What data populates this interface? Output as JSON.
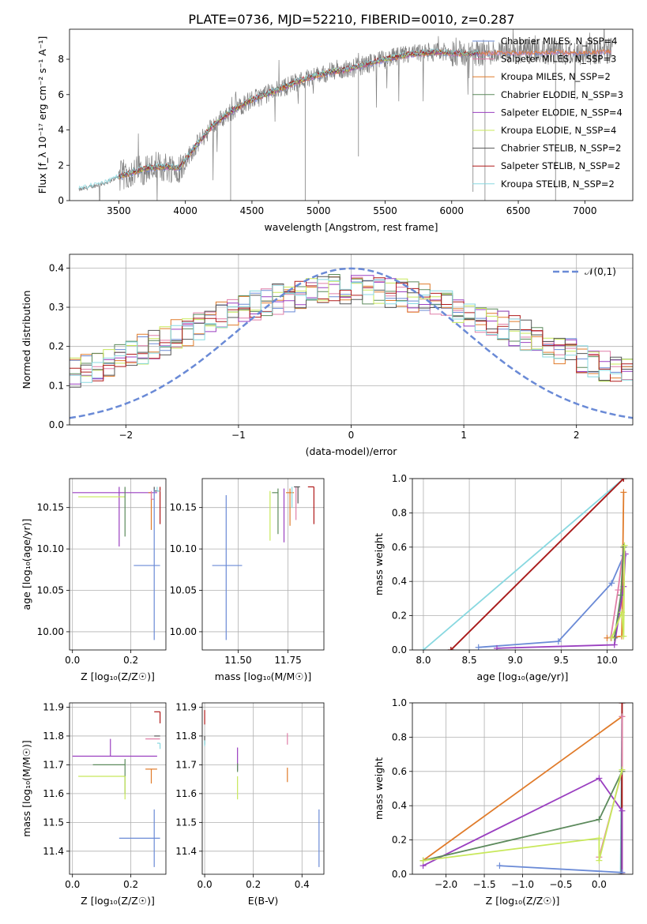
{
  "figure": {
    "title": "PLATE=0736, MJD=52210, FIBERID=0010, z=0.287"
  },
  "chart_data": [
    {
      "id": "spectrum",
      "type": "line",
      "xlabel": "wavelength [Angstrom, rest frame]",
      "ylabel": "Flux [f_λ 10⁻¹⁷ erg cm⁻² s⁻¹ A⁻¹]",
      "xlim": [
        3130,
        7360
      ],
      "ylim": [
        0,
        9.7
      ],
      "xticks": [
        3500,
        4000,
        4500,
        5000,
        5500,
        6000,
        6500,
        7000
      ],
      "yticks": [
        0,
        2,
        4,
        6,
        8
      ],
      "grid": false,
      "legend_position": "top-right",
      "series": [
        {
          "name": "Chabrier MILES, N_SSP=4",
          "color": "#6a8ad6"
        },
        {
          "name": "Salpeter MILES, N_SSP=3",
          "color": "#e07fa8"
        },
        {
          "name": "Kroupa MILES, N_SSP=2",
          "color": "#e07b2a"
        },
        {
          "name": "Chabrier ELODIE, N_SSP=3",
          "color": "#5c8a5c"
        },
        {
          "name": "Salpeter ELODIE, N_SSP=4",
          "color": "#9a3fc0"
        },
        {
          "name": "Kroupa ELODIE, N_SSP=4",
          "color": "#c8e85a"
        },
        {
          "name": "Chabrier STELIB, N_SSP=2",
          "color": "#555555"
        },
        {
          "name": "Salpeter STELIB, N_SSP=2",
          "color": "#b01a1a"
        },
        {
          "name": "Kroupa STELIB, N_SSP=2",
          "color": "#88d8e0"
        }
      ],
      "data_color": "#808080",
      "continuum": {
        "x": [
          3200,
          3300,
          3400,
          3500,
          3600,
          3700,
          3800,
          3900,
          3960,
          4000,
          4100,
          4200,
          4300,
          4400,
          4500,
          4600,
          4700,
          4800,
          4900,
          5000,
          5100,
          5200,
          5300,
          5400,
          5500,
          5600,
          5700,
          5800,
          5900,
          6000,
          6100,
          6200,
          6300,
          6400,
          6500,
          6600,
          6700,
          6800,
          6900,
          7000,
          7100,
          7200
        ],
        "y": [
          0.6,
          0.8,
          1.0,
          1.35,
          1.6,
          1.8,
          1.9,
          1.9,
          1.85,
          2.3,
          3.3,
          4.2,
          4.8,
          5.3,
          5.7,
          6.0,
          6.3,
          6.6,
          6.9,
          7.1,
          7.3,
          7.4,
          7.6,
          7.8,
          8.0,
          8.15,
          8.3,
          8.35,
          8.4,
          8.35,
          8.3,
          8.35,
          8.4,
          8.4,
          8.4,
          8.4,
          8.4,
          8.45,
          8.4,
          8.4,
          8.45,
          8.5
        ]
      }
    },
    {
      "id": "residuals",
      "type": "line",
      "xlabel": "(data-model)/error",
      "ylabel": "Normed distribution",
      "xlim": [
        -2.5,
        2.5
      ],
      "ylim": [
        0,
        0.435
      ],
      "xticks": [
        -2,
        -1,
        0,
        1,
        2
      ],
      "yticks": [
        0.0,
        0.1,
        0.2,
        0.3,
        0.4
      ],
      "grid": true,
      "legend_position": "top-right",
      "legend_label": "𝒩(0,1)",
      "normal_color": "#6a8ad6",
      "bin_width": 0.1
    },
    {
      "id": "age-vs-Z",
      "type": "scatter",
      "xlabel": "Z [log₁₀(Z/Z☉)]",
      "ylabel": "age  [log₁₀(age/yr)]",
      "xlim": [
        -0.01,
        0.32
      ],
      "ylim": [
        9.978,
        10.185
      ],
      "xticks": [
        0.0,
        0.2
      ],
      "yticks": [
        10.0,
        10.05,
        10.1,
        10.15
      ],
      "grid": true,
      "points": [
        {
          "x": 0.28,
          "xerr": [
            0.0,
            0.02
          ],
          "y": 10.17,
          "yerr": [
            0.0,
            0.005
          ],
          "color": "#555555"
        },
        {
          "x": 0.3,
          "xerr": [
            0.0,
            0.0
          ],
          "y": 10.155,
          "yerr": [
            0.025,
            0.02
          ],
          "color": "#b01a1a"
        },
        {
          "x": 0.29,
          "xerr": [
            0.0,
            0.01
          ],
          "y": 10.17,
          "yerr": [
            0.0,
            0.005
          ],
          "color": "#88d8e0"
        },
        {
          "x": 0.16,
          "xerr": [
            0.16,
            0.13
          ],
          "y": 10.168,
          "yerr": [
            0.065,
            0.007
          ],
          "color": "#9a3fc0"
        },
        {
          "x": 0.27,
          "xerr": [
            0.01,
            0.0
          ],
          "y": 10.168,
          "yerr": [
            0.045,
            0.0
          ],
          "color": "#e07b2a"
        },
        {
          "x": 0.27,
          "xerr": [
            0.0,
            0.01
          ],
          "y": 10.16,
          "yerr": [
            0.0,
            0.01
          ],
          "color": "#e07fa8"
        },
        {
          "x": 0.18,
          "xerr": [
            0.16,
            0.0
          ],
          "y": 10.163,
          "yerr": [
            0.0,
            0.0
          ],
          "color": "#c8e85a"
        },
        {
          "x": 0.18,
          "xerr": [
            0.0,
            0.0
          ],
          "y": 10.16,
          "yerr": [
            0.045,
            0.015
          ],
          "color": "#5c8a5c"
        },
        {
          "x": 0.28,
          "xerr": [
            0.07,
            0.02
          ],
          "y": 10.08,
          "yerr": [
            0.09,
            0.092
          ],
          "color": "#6a8ad6"
        }
      ]
    },
    {
      "id": "age-vs-mass",
      "type": "scatter",
      "xlabel": "mass [log₁₀(M/M☉)]",
      "ylabel": "",
      "xlim": [
        11.32,
        11.93
      ],
      "ylim": [
        9.978,
        10.185
      ],
      "xticks": [
        11.5,
        11.75
      ],
      "yticks": [
        10.0,
        10.05,
        10.1,
        10.15
      ],
      "grid": true,
      "points": [
        {
          "x": 11.44,
          "xerr": [
            0.07,
            0.08
          ],
          "y": 10.08,
          "yerr": [
            0.09,
            0.085
          ],
          "color": "#6a8ad6"
        },
        {
          "x": 11.66,
          "xerr": [
            0.0,
            0.0
          ],
          "y": 10.16,
          "yerr": [
            0.05,
            0.01
          ],
          "color": "#c8e85a"
        },
        {
          "x": 11.7,
          "xerr": [
            0.03,
            0.0
          ],
          "y": 10.168,
          "yerr": [
            0.05,
            0.005
          ],
          "color": "#5c8a5c"
        },
        {
          "x": 11.73,
          "xerr": [
            0.0,
            0.0
          ],
          "y": 10.168,
          "yerr": [
            0.06,
            0.005
          ],
          "color": "#9a3fc0"
        },
        {
          "x": 11.76,
          "xerr": [
            0.02,
            0.02
          ],
          "y": 10.168,
          "yerr": [
            0.04,
            0.005
          ],
          "color": "#e07b2a"
        },
        {
          "x": 11.79,
          "xerr": [
            0.0,
            0.0
          ],
          "y": 10.165,
          "yerr": [
            0.03,
            0.01
          ],
          "color": "#e07fa8"
        },
        {
          "x": 11.77,
          "xerr": [
            0.0,
            0.0
          ],
          "y": 10.17,
          "yerr": [
            0.02,
            0.005
          ],
          "color": "#88d8e0"
        },
        {
          "x": 11.8,
          "xerr": [
            0.02,
            0.01
          ],
          "y": 10.175,
          "yerr": [
            0.02,
            0.0
          ],
          "color": "#555555"
        },
        {
          "x": 11.88,
          "xerr": [
            0.03,
            0.0
          ],
          "y": 10.175,
          "yerr": [
            0.045,
            0.0
          ],
          "color": "#b01a1a"
        }
      ]
    },
    {
      "id": "mass-weight-vs-age",
      "type": "line",
      "xlabel": "age  [log₁₀(age/yr)]",
      "ylabel": "mass weight",
      "xlim": [
        7.88,
        10.28
      ],
      "ylim": [
        0,
        1.0
      ],
      "xticks": [
        8.0,
        8.5,
        9.0,
        9.5,
        10.0
      ],
      "yticks": [
        0.0,
        0.2,
        0.4,
        0.6,
        0.8,
        1.0
      ],
      "grid": true,
      "series": [
        {
          "color": "#88d8e0",
          "x": [
            8.0,
            10.18
          ],
          "y": [
            0.0,
            1.0
          ]
        },
        {
          "color": "#555555",
          "x": [
            8.3,
            10.18
          ],
          "y": [
            0.0,
            1.0
          ]
        },
        {
          "color": "#b01a1a",
          "x": [
            8.3,
            10.18
          ],
          "y": [
            0.0,
            1.0
          ]
        },
        {
          "color": "#e07b2a",
          "x": [
            10.0,
            10.16,
            10.18
          ],
          "y": [
            0.07,
            0.08,
            0.92
          ]
        },
        {
          "color": "#6a8ad6",
          "x": [
            8.6,
            9.47,
            10.05,
            10.18
          ],
          "y": [
            0.015,
            0.05,
            0.39,
            0.55
          ]
        },
        {
          "color": "#e07fa8",
          "x": [
            10.04,
            10.12,
            10.18
          ],
          "y": [
            0.07,
            0.35,
            0.6
          ]
        },
        {
          "color": "#9a3fc0",
          "x": [
            8.8,
            10.08,
            10.18,
            10.2
          ],
          "y": [
            0.01,
            0.03,
            0.37,
            0.56
          ]
        },
        {
          "color": "#5c8a5c",
          "x": [
            10.08,
            10.15,
            10.18
          ],
          "y": [
            0.07,
            0.32,
            0.6
          ]
        },
        {
          "color": "#c8e85a",
          "x": [
            10.05,
            10.16,
            10.18,
            10.19
          ],
          "y": [
            0.07,
            0.22,
            0.08,
            0.61
          ]
        }
      ]
    },
    {
      "id": "mass-vs-Z",
      "type": "scatter",
      "xlabel": "Z [log₁₀(Z/Z☉)]",
      "ylabel": "mass [log₁₀(M/M☉)]",
      "xlim": [
        -0.01,
        0.32
      ],
      "ylim": [
        11.32,
        11.915
      ],
      "xticks": [
        0.0,
        0.2
      ],
      "yticks": [
        11.4,
        11.5,
        11.6,
        11.7,
        11.8,
        11.9
      ],
      "grid": true,
      "points": [
        {
          "x": 0.3,
          "xerr": [
            0.02,
            0.0
          ],
          "y": 11.884,
          "yerr": [
            0.04,
            0.0
          ],
          "color": "#b01a1a"
        },
        {
          "x": 0.3,
          "xerr": [
            0.02,
            0.0
          ],
          "y": 11.8,
          "yerr": [
            0.0,
            0.0
          ],
          "color": "#555555"
        },
        {
          "x": 0.28,
          "xerr": [
            0.03,
            0.02
          ],
          "y": 11.79,
          "yerr": [
            0.0,
            0.0
          ],
          "color": "#e07fa8"
        },
        {
          "x": 0.3,
          "xerr": [
            0.01,
            0.0
          ],
          "y": 11.775,
          "yerr": [
            0.02,
            0.0
          ],
          "color": "#88d8e0"
        },
        {
          "x": 0.13,
          "xerr": [
            0.13,
            0.16
          ],
          "y": 11.73,
          "yerr": [
            0.0,
            0.06
          ],
          "color": "#9a3fc0"
        },
        {
          "x": 0.27,
          "xerr": [
            0.02,
            0.02
          ],
          "y": 11.685,
          "yerr": [
            0.05,
            0.0
          ],
          "color": "#e07b2a"
        },
        {
          "x": 0.18,
          "xerr": [
            0.11,
            0.0
          ],
          "y": 11.7,
          "yerr": [
            0.1,
            0.02
          ],
          "color": "#5c8a5c"
        },
        {
          "x": 0.18,
          "xerr": [
            0.16,
            0.0
          ],
          "y": 11.66,
          "yerr": [
            0.08,
            0.0
          ],
          "color": "#c8e85a"
        },
        {
          "x": 0.28,
          "xerr": [
            0.12,
            0.02
          ],
          "y": 11.445,
          "yerr": [
            0.1,
            0.1
          ],
          "color": "#6a8ad6"
        }
      ]
    },
    {
      "id": "mass-vs-ebv",
      "type": "scatter",
      "xlabel": "E(B-V)",
      "ylabel": "",
      "xlim": [
        -0.01,
        0.49
      ],
      "ylim": [
        11.32,
        11.915
      ],
      "xticks": [
        0.0,
        0.2,
        0.4
      ],
      "yticks": [
        11.4,
        11.5,
        11.6,
        11.7,
        11.8,
        11.9
      ],
      "grid": true,
      "points": [
        {
          "x": 0.0,
          "y": 11.87,
          "yerr": [
            0.03,
            0.02
          ],
          "color": "#b01a1a"
        },
        {
          "x": 0.0,
          "y": 11.79,
          "yerr": [
            0.02,
            0.01
          ],
          "color": "#555555"
        },
        {
          "x": 0.0,
          "y": 11.775,
          "yerr": [
            0.01,
            0.01
          ],
          "color": "#88d8e0"
        },
        {
          "x": 0.135,
          "y": 11.73,
          "yerr": [
            0.05,
            0.03
          ],
          "color": "#9a3fc0"
        },
        {
          "x": 0.135,
          "y": 11.695,
          "yerr": [
            0.02,
            0.01
          ],
          "color": "#5c8a5c"
        },
        {
          "x": 0.135,
          "y": 11.62,
          "yerr": [
            0.04,
            0.04
          ],
          "color": "#c8e85a"
        },
        {
          "x": 0.34,
          "y": 11.79,
          "yerr": [
            0.02,
            0.02
          ],
          "color": "#e07fa8"
        },
        {
          "x": 0.34,
          "y": 11.67,
          "yerr": [
            0.03,
            0.02
          ],
          "color": "#e07b2a"
        },
        {
          "x": 0.47,
          "y": 11.445,
          "yerr": [
            0.1,
            0.1
          ],
          "color": "#6a8ad6"
        }
      ]
    },
    {
      "id": "mass-weight-vs-Z",
      "type": "line",
      "xlabel": "Z [log₁₀(Z/Z☉)]",
      "ylabel": "mass weight",
      "xlim": [
        -2.44,
        0.44
      ],
      "ylim": [
        0,
        1.0
      ],
      "xticks": [
        -2.0,
        -1.5,
        -1.0,
        -0.5,
        0.0
      ],
      "yticks": [
        0.0,
        0.2,
        0.4,
        0.6,
        0.8,
        1.0
      ],
      "grid": true,
      "series": [
        {
          "color": "#e07b2a",
          "x": [
            -2.3,
            0.3
          ],
          "y": [
            0.08,
            0.92
          ]
        },
        {
          "color": "#88d8e0",
          "x": [
            0.28,
            0.3
          ],
          "y": [
            0.0,
            1.0
          ]
        },
        {
          "color": "#555555",
          "x": [
            0.29,
            0.3
          ],
          "y": [
            0.0,
            1.0
          ]
        },
        {
          "color": "#b01a1a",
          "x": [
            0.3,
            0.3
          ],
          "y": [
            0.0,
            1.0
          ]
        },
        {
          "color": "#e07fa8",
          "x": [
            0.0,
            0.3,
            0.3
          ],
          "y": [
            0.1,
            0.6,
            0.92
          ]
        },
        {
          "color": "#9a3fc0",
          "x": [
            -2.3,
            0.0,
            0.3,
            0.3
          ],
          "y": [
            0.05,
            0.56,
            0.37,
            0.01
          ]
        },
        {
          "color": "#5c8a5c",
          "x": [
            -2.3,
            0.0,
            0.3
          ],
          "y": [
            0.08,
            0.32,
            0.6
          ]
        },
        {
          "color": "#c8e85a",
          "x": [
            -2.3,
            0.0,
            0.0,
            0.3
          ],
          "y": [
            0.08,
            0.21,
            0.08,
            0.61
          ]
        },
        {
          "color": "#6a8ad6",
          "x": [
            -1.3,
            0.3
          ],
          "y": [
            0.05,
            0.01
          ]
        }
      ]
    }
  ]
}
